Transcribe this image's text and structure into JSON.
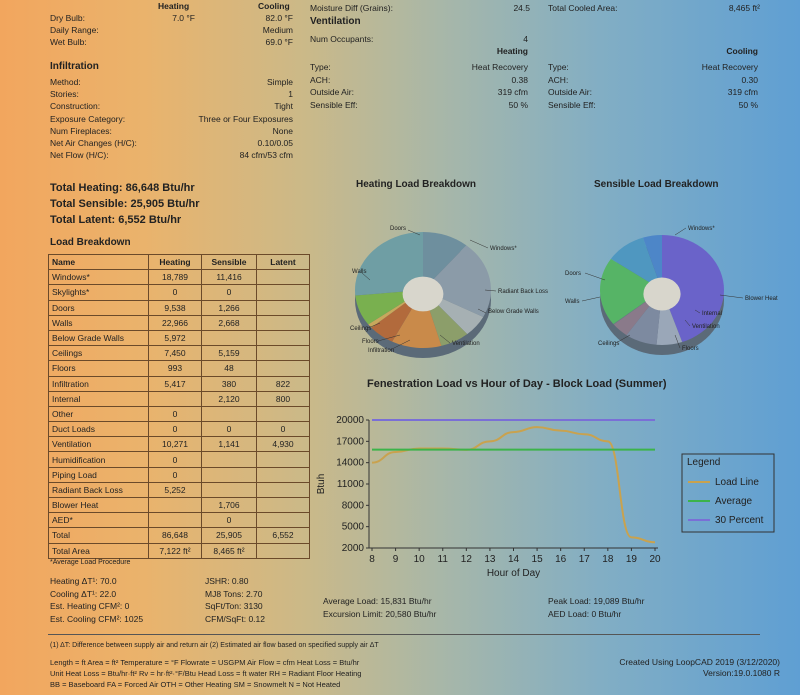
{
  "design": {
    "heating_col": "Heating",
    "cooling_col": "Cooling",
    "rows": [
      {
        "label": "Dry Bulb:",
        "heating": "7.0 °F",
        "cooling": "82.0 °F"
      },
      {
        "label": "Daily Range:",
        "heating": "",
        "cooling": "Medium"
      },
      {
        "label": "Wet Bulb:",
        "heating": "",
        "cooling": "69.0 °F"
      }
    ]
  },
  "infiltration": {
    "title": "Infiltration",
    "rows": [
      {
        "label": "Method:",
        "value": "Simple"
      },
      {
        "label": "Stories:",
        "value": "1"
      },
      {
        "label": "Construction:",
        "value": "Tight"
      },
      {
        "label": "Exposure Category:",
        "value": "Three or Four Exposures"
      },
      {
        "label": "Num Fireplaces:",
        "value": "None"
      },
      {
        "label": "Net Air Changes (H/C):",
        "value": "0.10/0.05"
      },
      {
        "label": "Net Flow (H/C):",
        "value": "84 cfm/53 cfm"
      }
    ]
  },
  "totals": {
    "heating": "Total Heating: 86,648 Btu/hr",
    "sensible": "Total Sensible: 25,905 Btu/hr",
    "latent": "Total Latent: 6,552 Btu/hr"
  },
  "moisture": {
    "label": "Moisture Diff (Grains):",
    "value": "24.5"
  },
  "cooled_area": {
    "label": "Total Cooled Area:",
    "value": "8,465 ft²"
  },
  "ventilation": {
    "title": "Ventilation",
    "occupants_label": "Num Occupants:",
    "occupants_value": "4",
    "heating_col": "Heating",
    "cooling_col": "Cooling",
    "heating": [
      {
        "label": "Type:",
        "value": "Heat Recovery"
      },
      {
        "label": "ACH:",
        "value": "0.38"
      },
      {
        "label": "Outside Air:",
        "value": "319 cfm"
      },
      {
        "label": "Sensible Eff:",
        "value": "50 %"
      }
    ],
    "cooling": [
      {
        "label": "Type:",
        "value": "Heat Recovery"
      },
      {
        "label": "ACH:",
        "value": "0.30"
      },
      {
        "label": "Outside Air:",
        "value": "319 cfm"
      },
      {
        "label": "Sensible Eff:",
        "value": "50 %"
      }
    ]
  },
  "load_breakdown": {
    "title": "Load Breakdown",
    "headers": [
      "Name",
      "Heating",
      "Sensible",
      "Latent"
    ],
    "rows": [
      [
        "Windows*",
        "18,789",
        "11,416",
        ""
      ],
      [
        "Skylights*",
        "0",
        "0",
        ""
      ],
      [
        "Doors",
        "9,538",
        "1,266",
        ""
      ],
      [
        "Walls",
        "22,966",
        "2,668",
        ""
      ],
      [
        "Below Grade Walls",
        "5,972",
        "",
        ""
      ],
      [
        "Ceilings",
        "7,450",
        "5,159",
        ""
      ],
      [
        "Floors",
        "993",
        "48",
        ""
      ],
      [
        "Infiltration",
        "5,417",
        "380",
        "822"
      ],
      [
        "Internal",
        "",
        "2,120",
        "800"
      ],
      [
        "Other",
        "0",
        "",
        ""
      ],
      [
        "Duct Loads",
        "0",
        "0",
        "0"
      ],
      [
        "Ventilation",
        "10,271",
        "1,141",
        "4,930"
      ],
      [
        "Humidification",
        "0",
        "",
        ""
      ],
      [
        "Piping Load",
        "0",
        "",
        ""
      ],
      [
        "Radiant Back Loss",
        "5,252",
        "",
        ""
      ],
      [
        "Blower Heat",
        "",
        "1,706",
        ""
      ],
      [
        "AED*",
        "",
        "0",
        ""
      ],
      [
        "Total",
        "86,648",
        "25,905",
        "6,552"
      ],
      [
        "Total Area",
        "7,122 ft²",
        "8,465 ft²",
        ""
      ]
    ],
    "footnote": "*Average Load Procedure"
  },
  "metrics_left": [
    {
      "label": "Heating ΔT¹: 70.0"
    },
    {
      "label": "Cooling ΔT¹: 22.0"
    },
    {
      "label": "Est. Heating CFM²: 0"
    },
    {
      "label": "Est. Cooling CFM²: 1025"
    }
  ],
  "metrics_right": [
    {
      "label": "JSHR: 0.80"
    },
    {
      "label": "MJ8 Tons: 2.70"
    },
    {
      "label": "SqFt/Ton: 3130"
    },
    {
      "label": "CFM/SqFt: 0.12"
    }
  ],
  "heating_pie": {
    "title": "Heating Load Breakdown",
    "labels": [
      "Doors",
      "Windows*",
      "Walls",
      "Radiant Back Loss",
      "Below Grade Walls",
      "Ceilings",
      "Floors",
      "Infiltration",
      "Ventilation"
    ]
  },
  "sensible_pie": {
    "title": "Sensible Load Breakdown",
    "labels": [
      "Windows*",
      "Doors",
      "Walls",
      "Blower Heat",
      "Internal",
      "Ventilation",
      "Ceilings",
      "Floors"
    ]
  },
  "chart_data": {
    "type": "line",
    "title": "Fenestration Load vs Hour of Day - Block Load (Summer)",
    "xlabel": "Hour of Day",
    "ylabel": "Btuh",
    "x": [
      8,
      9,
      10,
      11,
      12,
      13,
      14,
      15,
      16,
      17,
      18,
      19,
      20
    ],
    "ylim": [
      2000,
      20000
    ],
    "yticks": [
      2000,
      5000,
      8000,
      11000,
      14000,
      17000,
      20000
    ],
    "series": [
      {
        "name": "Load Line",
        "color": "#c9a24e",
        "values": [
          14000,
          15500,
          16000,
          16000,
          15800,
          17000,
          18300,
          19000,
          18500,
          18000,
          17000,
          3500,
          2800
        ]
      },
      {
        "name": "Average",
        "color": "#3cb34a",
        "values": [
          15831,
          15831,
          15831,
          15831,
          15831,
          15831,
          15831,
          15831,
          15831,
          15831,
          15831,
          15831,
          15831
        ]
      },
      {
        "name": "30 Percent",
        "color": "#7a6fd6",
        "values": [
          20580,
          20580,
          20580,
          20580,
          20580,
          20580,
          20580,
          20580,
          20580,
          20580,
          20580,
          20580,
          20580
        ]
      }
    ],
    "legend_title": "Legend"
  },
  "chart_stats": {
    "avg": "Average Load: 15,831 Btu/hr",
    "excursion": "Excursion Limit: 20,580 Btu/hr",
    "peak": "Peak Load: 19,089 Btu/hr",
    "aed": "AED Load: 0 Btu/hr"
  },
  "notes": {
    "line1": "(1) ΔT: Difference between supply air and return air     (2) Estimated air flow based on specified supply air ΔT",
    "line2": "Length = ft   Area = ft²      Temperature = °F      Flowrate = USGPM      Air Flow = cfm      Heat Loss = Btu/hr",
    "line3": "Unit Heat Loss = Btu/hr·ft²        Rv = hr·ft²·°F/Btu       Head Loss = ft water     RH = Radiant Floor Heating",
    "line4": "BB = Baseboard     FA = Forced Air     OTH = Other Heating     SM = Snowmelt     N = Not Heated",
    "created": "Created Using LoopCAD 2019 (3/12/2020)",
    "version": "Version:19.0.1080 R"
  }
}
